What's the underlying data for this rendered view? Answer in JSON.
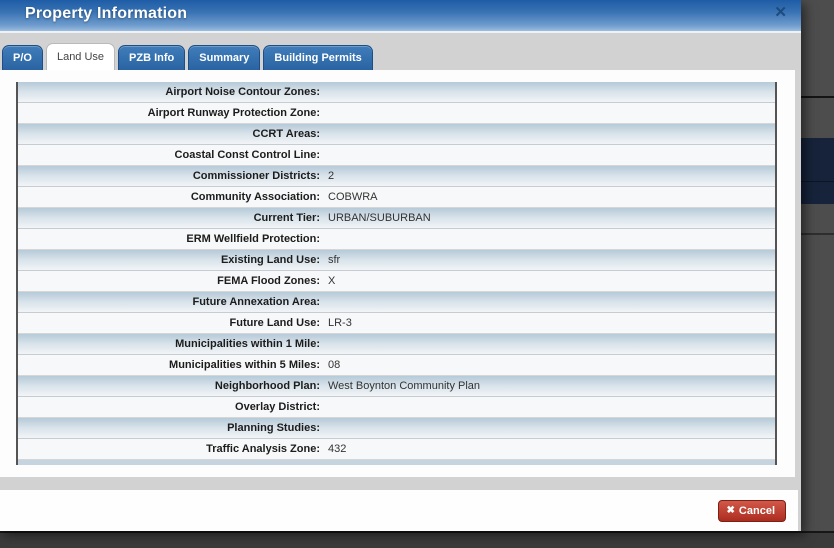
{
  "modal": {
    "title": "Property Information",
    "close_icon": "✕",
    "tabs": [
      {
        "label": "P/O",
        "active": false
      },
      {
        "label": "Land Use",
        "active": true
      },
      {
        "label": "PZB Info",
        "active": false
      },
      {
        "label": "Summary",
        "active": false
      },
      {
        "label": "Building Permits",
        "active": false
      }
    ],
    "fields": [
      {
        "label": "Airport Noise Contour Zones:",
        "value": ""
      },
      {
        "label": "Airport Runway Protection Zone:",
        "value": ""
      },
      {
        "label": "CCRT Areas:",
        "value": ""
      },
      {
        "label": "Coastal Const Control Line:",
        "value": ""
      },
      {
        "label": "Commissioner Districts:",
        "value": "2"
      },
      {
        "label": "Community Association:",
        "value": "COBWRA"
      },
      {
        "label": "Current Tier:",
        "value": "URBAN/SUBURBAN"
      },
      {
        "label": "ERM Wellfield Protection:",
        "value": ""
      },
      {
        "label": "Existing Land Use:",
        "value": "sfr"
      },
      {
        "label": "FEMA Flood Zones:",
        "value": "X"
      },
      {
        "label": "Future Annexation Area:",
        "value": ""
      },
      {
        "label": "Future Land Use:",
        "value": "LR-3"
      },
      {
        "label": "Municipalities within 1 Mile:",
        "value": ""
      },
      {
        "label": "Municipalities within 5 Miles:",
        "value": "08"
      },
      {
        "label": "Neighborhood Plan:",
        "value": "West Boynton Community Plan"
      },
      {
        "label": "Overlay District:",
        "value": ""
      },
      {
        "label": "Planning Studies:",
        "value": ""
      },
      {
        "label": "Traffic Analysis Zone:",
        "value": "432"
      }
    ],
    "cancel_button": {
      "label": "Cancel",
      "icon": "✖"
    }
  },
  "colors": {
    "titlebar_top": "#1e5ca6",
    "titlebar_bottom": "#9dbcdf",
    "tab_blue": "#2a63a3",
    "tab_border": "#1d4e87",
    "chrome_gray": "#d2d2d2",
    "stripe_blue": "#b5cad8",
    "row_white": "#f7f8f9",
    "cancel_red": "#ab2d1f",
    "page_dark": "#4a4a4a",
    "highlight_navy": "#16233a"
  }
}
